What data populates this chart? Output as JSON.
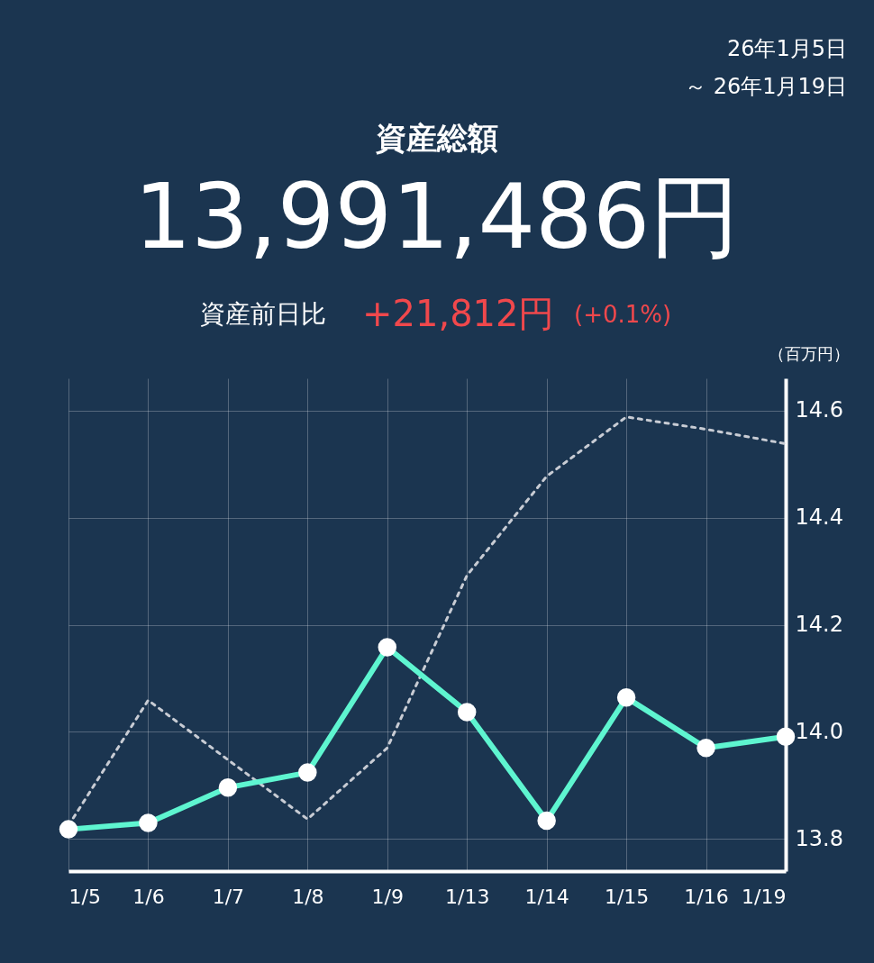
{
  "chart_data": {
    "type": "line",
    "title": "資産総額",
    "ylabel": "（百万円）",
    "annotations": [
      "26年1月5日",
      "～ 26年1月19日",
      "13,991,486円",
      "資産前日比",
      "+21,812円",
      "(+0.1%)"
    ],
    "categories": [
      "1/5",
      "1/6",
      "1/7",
      "1/8",
      "1/9",
      "1/13",
      "1/14",
      "1/15",
      "1/16",
      "1/19"
    ],
    "series": [
      {
        "color": "#c8ccd4",
        "axis": "y2",
        "line_style": "dotted",
        "marker": "none",
        "values": [
          13.825,
          14.059,
          13.948,
          13.837,
          13.97,
          14.292,
          14.477,
          14.588,
          14.565,
          14.538
        ]
      },
      {
        "color": "#5ef5d0",
        "axis": "y2",
        "line_style": "solid",
        "marker": "circle",
        "values": [
          13.818,
          13.83,
          13.896,
          13.924,
          14.158,
          14.037,
          13.834,
          14.064,
          13.97,
          13.991
        ]
      }
    ],
    "y2lim": [
      13.74,
      14.66
    ],
    "y2ticks": [
      13.8,
      {
        "value": 14.0,
        "label": "14.0"
      },
      14.2,
      14.4,
      14.6
    ],
    "grid": true
  }
}
